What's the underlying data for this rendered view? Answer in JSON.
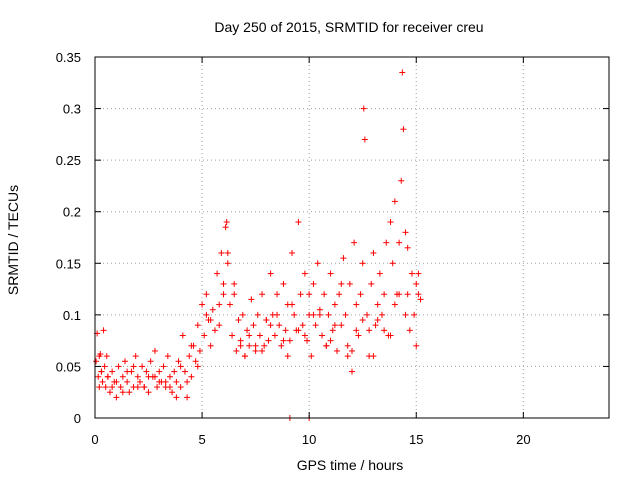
{
  "chart_data": {
    "type": "scatter",
    "title": "Day 250 of 2015, SRMTID for receiver creu",
    "xlabel": "GPS time / hours",
    "ylabel": "SRMTID / TECUs",
    "xlim": [
      0,
      24
    ],
    "ylim": [
      0,
      0.35
    ],
    "xticks": [
      0,
      5,
      10,
      15,
      20
    ],
    "xtick_labels": [
      "0",
      "5",
      "10",
      "15",
      "20"
    ],
    "yticks": [
      0,
      0.05,
      0.1,
      0.15,
      0.2,
      0.25,
      0.3,
      0.35
    ],
    "ytick_labels": [
      "0",
      "0.05",
      "0.1",
      "0.15",
      "0.2",
      "0.25",
      "0.3",
      "0.35"
    ],
    "grid": true,
    "marker": "+",
    "color": "#ff0000",
    "series": [
      {
        "name": "SRMTID",
        "x": [
          0.05,
          0.1,
          0.15,
          0.2,
          0.25,
          0.3,
          0.35,
          0.4,
          0.45,
          0.5,
          0.55,
          0.6,
          0.7,
          0.8,
          0.9,
          1.0,
          1.1,
          1.2,
          1.3,
          1.4,
          1.5,
          1.6,
          1.7,
          1.8,
          1.9,
          2.0,
          2.1,
          2.2,
          2.3,
          2.4,
          2.5,
          2.6,
          2.7,
          2.8,
          2.9,
          3.0,
          3.1,
          3.2,
          3.3,
          3.4,
          3.5,
          3.6,
          3.7,
          3.8,
          3.9,
          4.0,
          4.1,
          4.2,
          4.3,
          4.4,
          4.5,
          4.6,
          4.7,
          4.8,
          4.9,
          5.0,
          5.1,
          5.2,
          5.3,
          5.4,
          5.5,
          5.6,
          5.7,
          5.8,
          5.9,
          6.0,
          6.1,
          6.15,
          6.2,
          6.3,
          6.4,
          6.5,
          6.6,
          6.7,
          6.8,
          6.9,
          7.0,
          7.1,
          7.2,
          7.3,
          7.4,
          7.5,
          7.6,
          7.7,
          7.8,
          7.9,
          8.0,
          8.1,
          8.2,
          8.3,
          8.4,
          8.5,
          8.6,
          8.7,
          8.8,
          8.9,
          9.0,
          9.1,
          9.2,
          9.3,
          9.4,
          9.5,
          9.6,
          9.7,
          9.8,
          9.9,
          10.0,
          10.1,
          10.2,
          10.3,
          10.4,
          10.5,
          10.6,
          10.7,
          10.8,
          10.9,
          11.0,
          11.1,
          11.2,
          11.3,
          11.4,
          11.5,
          11.6,
          11.7,
          11.8,
          11.9,
          12.0,
          12.1,
          12.2,
          12.3,
          12.4,
          12.5,
          12.55,
          12.6,
          12.7,
          12.8,
          12.9,
          13.0,
          13.1,
          13.2,
          13.3,
          13.4,
          13.5,
          13.6,
          13.7,
          13.8,
          13.9,
          14.0,
          14.1,
          14.2,
          14.3,
          14.35,
          14.4,
          14.5,
          14.6,
          14.7,
          14.8,
          14.9,
          15.0,
          15.1,
          15.2,
          0.2,
          0.6,
          1.0,
          1.5,
          2.0,
          2.5,
          3.0,
          3.5,
          4.0,
          4.5,
          5.2,
          5.8,
          6.2,
          6.8,
          7.2,
          7.8,
          8.2,
          8.8,
          9.2,
          9.8,
          10.2,
          10.8,
          11.2,
          11.8,
          12.2,
          12.8,
          13.2,
          13.8,
          14.2,
          14.6,
          15.0,
          0.3,
          0.8,
          1.3,
          1.8,
          2.3,
          2.8,
          3.3,
          3.8,
          4.3,
          4.8,
          5.4,
          6.0,
          6.5,
          7.0,
          7.5,
          8.0,
          8.5,
          9.0,
          9.5,
          10.0,
          10.5,
          11.0,
          11.5,
          12.0,
          12.5,
          13.0,
          13.5,
          14.0,
          14.5,
          15.1,
          9.1,
          10.0
        ],
        "y": [
          0.055,
          0.082,
          0.04,
          0.03,
          0.062,
          0.045,
          0.035,
          0.085,
          0.05,
          0.03,
          0.06,
          0.04,
          0.025,
          0.045,
          0.035,
          0.02,
          0.05,
          0.03,
          0.04,
          0.055,
          0.035,
          0.025,
          0.045,
          0.03,
          0.06,
          0.04,
          0.035,
          0.05,
          0.03,
          0.045,
          0.025,
          0.055,
          0.04,
          0.065,
          0.03,
          0.045,
          0.035,
          0.05,
          0.03,
          0.06,
          0.04,
          0.025,
          0.045,
          0.035,
          0.055,
          0.03,
          0.08,
          0.045,
          0.02,
          0.06,
          0.04,
          0.07,
          0.055,
          0.09,
          0.065,
          0.11,
          0.08,
          0.12,
          0.095,
          0.07,
          0.105,
          0.085,
          0.14,
          0.11,
          0.16,
          0.13,
          0.185,
          0.19,
          0.15,
          0.11,
          0.08,
          0.12,
          0.065,
          0.095,
          0.075,
          0.1,
          0.06,
          0.085,
          0.07,
          0.115,
          0.09,
          0.065,
          0.1,
          0.08,
          0.12,
          0.07,
          0.095,
          0.075,
          0.14,
          0.1,
          0.08,
          0.12,
          0.09,
          0.07,
          0.13,
          0.085,
          0.11,
          0.075,
          0.16,
          0.1,
          0.085,
          0.19,
          0.12,
          0.09,
          0.14,
          0.075,
          0.1,
          0.06,
          0.13,
          0.09,
          0.15,
          0.105,
          0.08,
          0.12,
          0.07,
          0.1,
          0.14,
          0.085,
          0.11,
          0.065,
          0.12,
          0.09,
          0.155,
          0.1,
          0.07,
          0.13,
          0.045,
          0.17,
          0.11,
          0.08,
          0.12,
          0.15,
          0.3,
          0.27,
          0.1,
          0.085,
          0.13,
          0.16,
          0.09,
          0.11,
          0.14,
          0.1,
          0.12,
          0.17,
          0.08,
          0.19,
          0.15,
          0.21,
          0.12,
          0.17,
          0.23,
          0.335,
          0.28,
          0.18,
          0.12,
          0.085,
          0.14,
          0.1,
          0.07,
          0.12,
          0.115,
          0.06,
          0.04,
          0.035,
          0.045,
          0.03,
          0.04,
          0.035,
          0.03,
          0.05,
          0.07,
          0.1,
          0.09,
          0.16,
          0.07,
          0.08,
          0.065,
          0.09,
          0.075,
          0.11,
          0.08,
          0.1,
          0.07,
          0.09,
          0.06,
          0.085,
          0.06,
          0.095,
          0.08,
          0.12,
          0.165,
          0.13,
          0.045,
          0.03,
          0.025,
          0.05,
          0.03,
          0.04,
          0.035,
          0.02,
          0.035,
          0.05,
          0.095,
          0.12,
          0.13,
          0.06,
          0.07,
          0.095,
          0.1,
          0.06,
          0.085,
          0.12,
          0.1,
          0.075,
          0.13,
          0.065,
          0.095,
          0.06,
          0.085,
          0.11,
          0.1,
          0.14,
          0.0,
          0.0
        ]
      }
    ]
  }
}
